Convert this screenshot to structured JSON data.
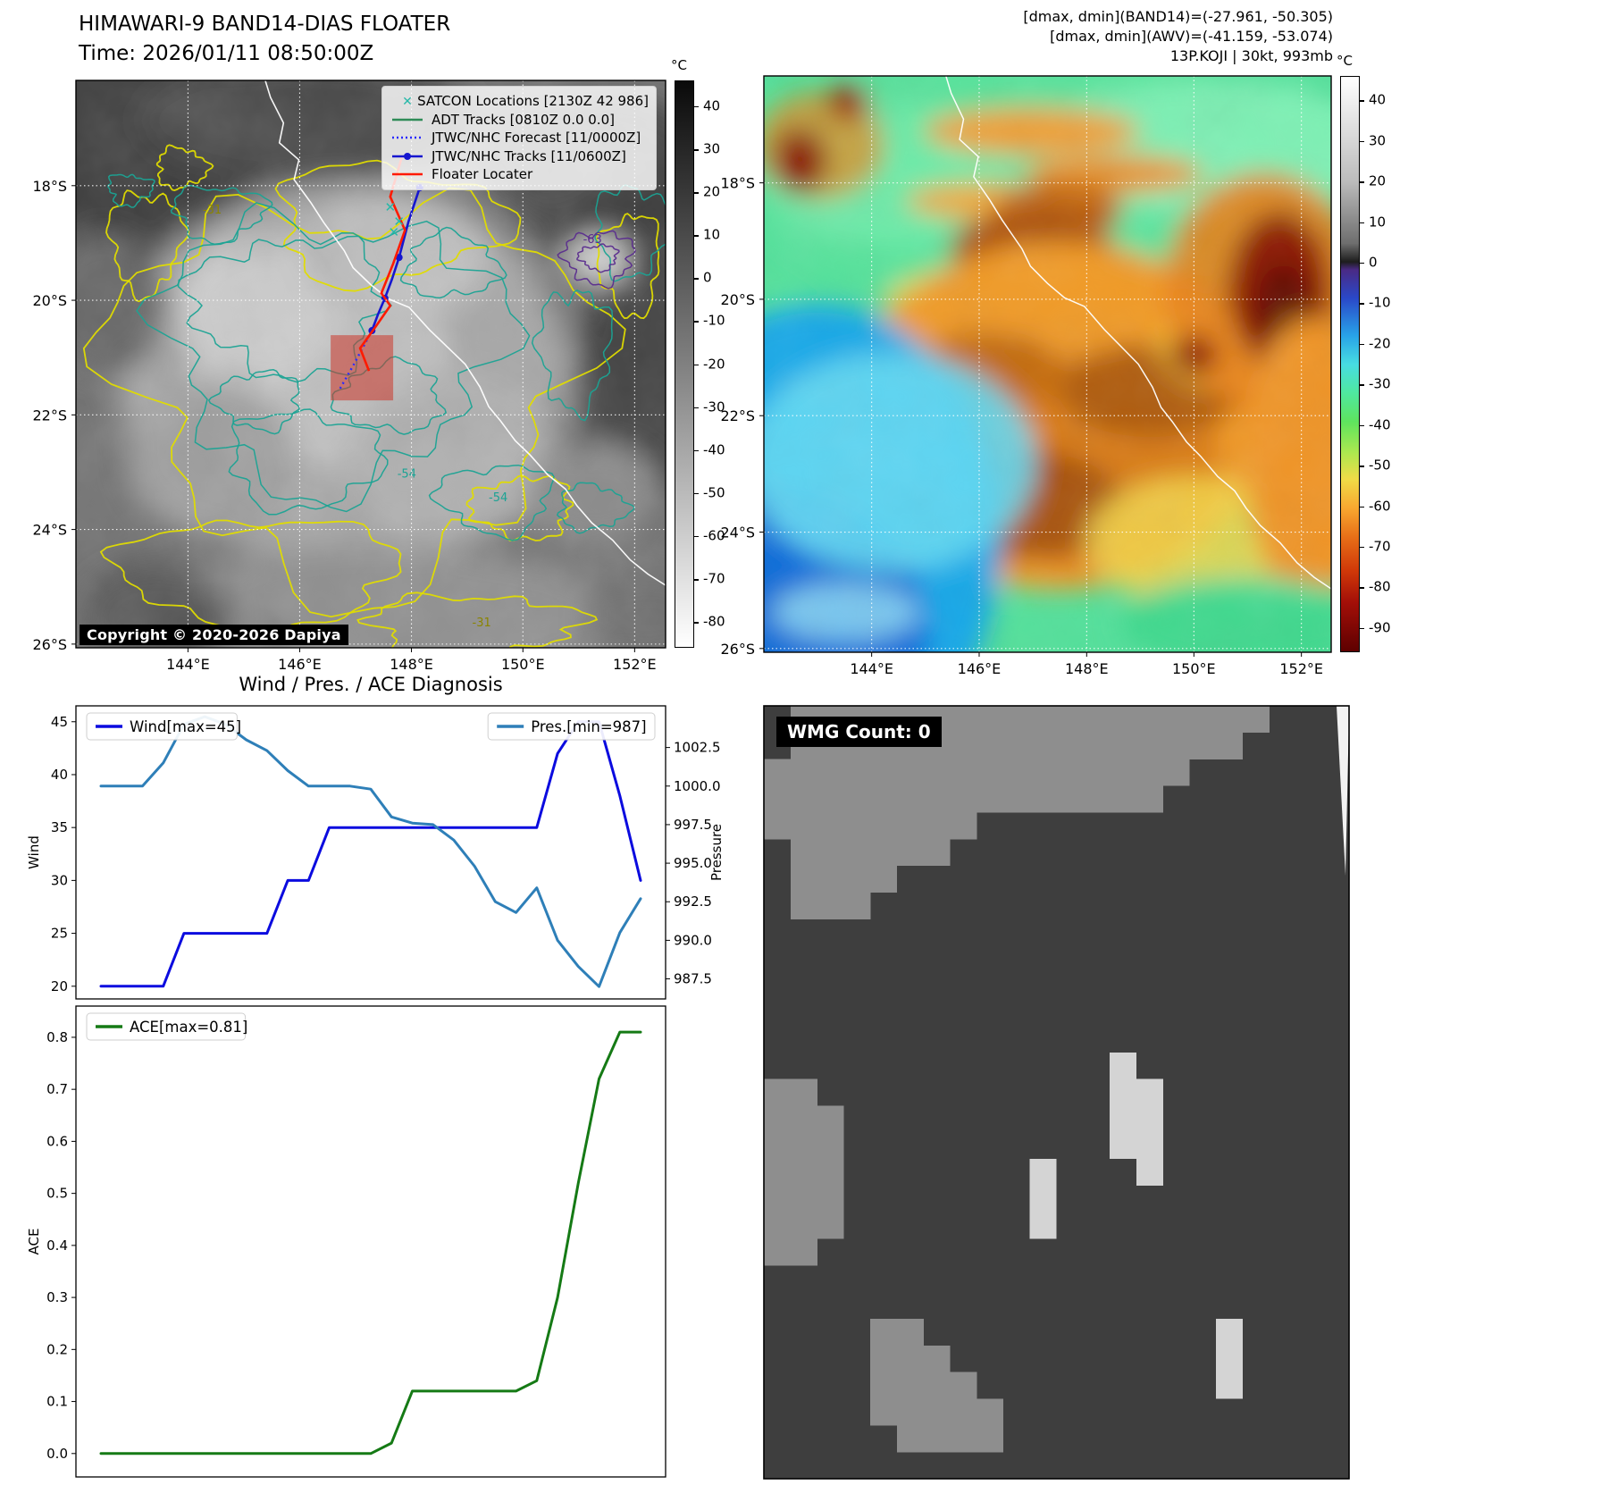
{
  "colors": {
    "wind_line": "#0b0bdf",
    "pres_line": "#2e7fb8",
    "ace_line": "#157a15",
    "floater_track": "#ff1a00",
    "jtwc_track": "#1616cf",
    "forecast_track": "#2a2aff",
    "satcon_marker": "#26b8a8",
    "adt_track": "#2e8b57",
    "contour_warm": "#e0dc00",
    "contour_cold": "#1ba394",
    "contour_coldest": "#5b2d8e",
    "coastline": "#ffffff",
    "grid": "#ffffff",
    "floater_box": "#cc372a"
  },
  "band14": {
    "title": "HIMAWARI-9 BAND14-DIAS FLOATER",
    "time": "Time: 2026/01/11 08:50:00Z",
    "copyright": "Copyright © 2020-2026 Dapiya",
    "legend": [
      {
        "label": "SATCON Locations [2130Z 42 986]",
        "marker": "satcon"
      },
      {
        "label": "ADT Tracks [0810Z 0.0 0.0]",
        "marker": "adt"
      },
      {
        "label": "JTWC/NHC Forecast [11/0000Z]",
        "marker": "forecast"
      },
      {
        "label": "JTWC/NHC Tracks [11/0600Z]",
        "marker": "jtwc"
      },
      {
        "label": "Floater Locater",
        "marker": "floater"
      }
    ],
    "lat_ticks": [
      "18°S",
      "20°S",
      "22°S",
      "24°S",
      "26°S"
    ],
    "lon_ticks": [
      "144°E",
      "146°E",
      "148°E",
      "150°E",
      "152°E"
    ],
    "colorbar_unit": "°C",
    "colorbar_ticks": [
      40,
      30,
      20,
      10,
      0,
      -10,
      -20,
      -30,
      -40,
      -50,
      -60,
      -70,
      -80
    ],
    "contour_labels": [
      {
        "text": "-31",
        "fx": 0.215,
        "fy": 0.235
      },
      {
        "text": "-54",
        "fx": 0.545,
        "fy": 0.7
      },
      {
        "text": "-54",
        "fx": 0.7,
        "fy": 0.742
      },
      {
        "text": "-63",
        "fx": 0.86,
        "fy": 0.287
      },
      {
        "text": "-31",
        "fx": 0.672,
        "fy": 0.962
      }
    ],
    "tracks": {
      "floater": [
        [
          0.553,
          0.134
        ],
        [
          0.533,
          0.205
        ],
        [
          0.558,
          0.264
        ],
        [
          0.538,
          0.323
        ],
        [
          0.518,
          0.375
        ],
        [
          0.533,
          0.397
        ],
        [
          0.509,
          0.433
        ],
        [
          0.482,
          0.472
        ],
        [
          0.497,
          0.512
        ]
      ],
      "jtwc": [
        [
          0.583,
          0.189
        ],
        [
          0.564,
          0.249
        ],
        [
          0.548,
          0.312
        ],
        [
          0.536,
          0.35
        ],
        [
          0.524,
          0.384
        ],
        [
          0.512,
          0.413
        ],
        [
          0.502,
          0.441
        ]
      ],
      "forecast": [
        [
          0.502,
          0.441
        ],
        [
          0.471,
          0.501
        ],
        [
          0.448,
          0.543
        ]
      ],
      "satcon": [
        [
          0.533,
          0.224
        ],
        [
          0.548,
          0.249
        ],
        [
          0.539,
          0.268
        ]
      ],
      "floater_box": [
        0.432,
        0.449,
        0.106,
        0.115
      ]
    }
  },
  "awv": {
    "header": [
      "[dmax, dmin](BAND14)=(-27.961, -50.305)",
      "[dmax, dmin](AWV)=(-41.159, -53.074)",
      "13P.KOJI | 30kt, 993mb"
    ],
    "lat_ticks": [
      "18°S",
      "20°S",
      "22°S",
      "24°S",
      "26°S"
    ],
    "lon_ticks": [
      "144°E",
      "146°E",
      "148°E",
      "150°E",
      "152°E"
    ],
    "colorbar_unit": "°C",
    "colorbar_ticks": [
      40,
      30,
      20,
      10,
      0,
      -10,
      -20,
      -30,
      -40,
      -50,
      -60,
      -70,
      -80,
      -90
    ]
  },
  "diagnosis": {
    "title": "Wind / Pres. / ACE Diagnosis"
  },
  "wmg": {
    "label": "WMG Count: 0"
  },
  "colorbar_stops": {
    "band14": [
      {
        "p": 0,
        "c": "#0a0a0a"
      },
      {
        "p": 0.5,
        "c": "#808080"
      },
      {
        "p": 1,
        "c": "#ffffff"
      }
    ],
    "awv": [
      {
        "p": 0,
        "c": "#ffffff"
      },
      {
        "p": 0.18,
        "c": "#bdbdbd"
      },
      {
        "p": 0.29,
        "c": "#6e6e6e"
      },
      {
        "p": 0.322,
        "c": "#1d1d1d"
      },
      {
        "p": 0.336,
        "c": "#4a2a85"
      },
      {
        "p": 0.385,
        "c": "#2a48c8"
      },
      {
        "p": 0.45,
        "c": "#28a2e8"
      },
      {
        "p": 0.5,
        "c": "#47dce2"
      },
      {
        "p": 0.55,
        "c": "#4fe8a0"
      },
      {
        "p": 0.6,
        "c": "#5ee45e"
      },
      {
        "p": 0.655,
        "c": "#aee84f"
      },
      {
        "p": 0.7,
        "c": "#f0dc47"
      },
      {
        "p": 0.75,
        "c": "#f8a830"
      },
      {
        "p": 0.8,
        "c": "#e87018"
      },
      {
        "p": 0.86,
        "c": "#d03808"
      },
      {
        "p": 0.915,
        "c": "#a30f08"
      },
      {
        "p": 1,
        "c": "#5e0000"
      }
    ]
  },
  "chart_data": [
    {
      "type": "line",
      "id": "wind_pres",
      "title": "Wind / Pres. / ACE Diagnosis",
      "x": [
        0,
        1,
        2,
        3,
        4,
        5,
        6,
        7,
        8,
        9,
        10,
        11,
        12,
        13,
        14,
        15,
        16,
        17,
        18,
        19,
        20,
        21,
        22,
        23,
        24,
        25,
        26
      ],
      "series": [
        {
          "name": "Wind[max=45]",
          "axis": "left",
          "color_key": "wind_line",
          "values": [
            20,
            20,
            20,
            20,
            25,
            25,
            25,
            25,
            25,
            30,
            30,
            35,
            35,
            35,
            35,
            35,
            35,
            35,
            35,
            35,
            35,
            35,
            42,
            45,
            45,
            38,
            30
          ]
        },
        {
          "name": "Pres.[min=987]",
          "axis": "right",
          "color_key": "pres_line",
          "values": [
            1000,
            1000,
            1000,
            1001.5,
            1004,
            1004.5,
            1004,
            1003,
            1002.3,
            1001,
            1000,
            1000,
            1000,
            999.8,
            998,
            997.6,
            997.5,
            996.5,
            994.8,
            992.5,
            991.8,
            993.4,
            990,
            988.3,
            987,
            990.5,
            992.7
          ]
        }
      ],
      "left_axis": {
        "label": "Wind",
        "ticks": [
          20,
          25,
          30,
          35,
          40,
          45
        ],
        "range": [
          18.8,
          46.5
        ],
        "format": "int"
      },
      "right_axis": {
        "label": "Pressure",
        "ticks": [
          987.5,
          990,
          992.5,
          995,
          997.5,
          1000,
          1002.5
        ],
        "range": [
          986.2,
          1005.2
        ],
        "format": "1dp"
      },
      "legend_position": "upper",
      "grid": false
    },
    {
      "type": "line",
      "id": "ace",
      "x": [
        0,
        1,
        2,
        3,
        4,
        5,
        6,
        7,
        8,
        9,
        10,
        11,
        12,
        13,
        14,
        15,
        16,
        17,
        18,
        19,
        20,
        21,
        22,
        23,
        24,
        25,
        26
      ],
      "series": [
        {
          "name": "ACE[max=0.81]",
          "axis": "left",
          "color_key": "ace_line",
          "values": [
            0,
            0,
            0,
            0,
            0,
            0,
            0,
            0,
            0,
            0,
            0,
            0,
            0,
            0,
            0.02,
            0.12,
            0.12,
            0.12,
            0.12,
            0.12,
            0.12,
            0.14,
            0.3,
            0.52,
            0.72,
            0.81,
            0.81
          ]
        }
      ],
      "left_axis": {
        "label": "ACE",
        "ticks": [
          0,
          0.1,
          0.2,
          0.3,
          0.4,
          0.5,
          0.6,
          0.7,
          0.8
        ],
        "range": [
          -0.045,
          0.86
        ],
        "format": "1dp"
      },
      "grid": false
    }
  ]
}
